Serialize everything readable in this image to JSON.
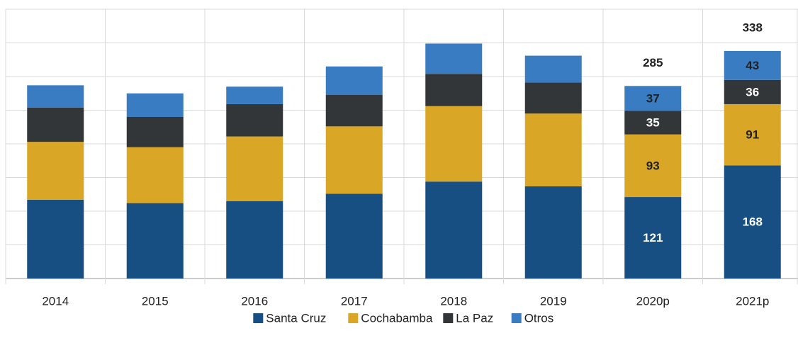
{
  "chart_data": {
    "type": "stacked_bar",
    "categories": [
      "2014",
      "2015",
      "2016",
      "2017",
      "2018",
      "2019",
      "2020p",
      "2021p"
    ],
    "series": [
      {
        "name": "Santa Cruz",
        "color": "#174f82",
        "label_color": "#ffffff",
        "values": [
          117,
          112,
          115,
          126,
          144,
          137,
          121,
          168
        ]
      },
      {
        "name": "Cochabamba",
        "color": "#d9a626",
        "label_color": "#222222",
        "values": [
          86,
          83,
          96,
          100,
          112,
          108,
          93,
          91
        ]
      },
      {
        "name": "La Paz",
        "color": "#333638",
        "label_color": "#ffffff",
        "values": [
          51,
          45,
          48,
          47,
          48,
          46,
          35,
          36
        ]
      },
      {
        "name": "Otros",
        "color": "#3a7cc2",
        "label_color": "#222222",
        "values": [
          33,
          35,
          26,
          42,
          45,
          40,
          37,
          43
        ]
      }
    ],
    "totals": [
      null,
      null,
      null,
      null,
      null,
      null,
      285,
      338
    ],
    "ylim": [
      0,
      400
    ],
    "yticks": [
      0,
      50,
      100,
      150,
      200,
      250,
      300,
      350,
      400
    ],
    "grid": true,
    "ytick_labels": false,
    "legend": "bottom"
  }
}
